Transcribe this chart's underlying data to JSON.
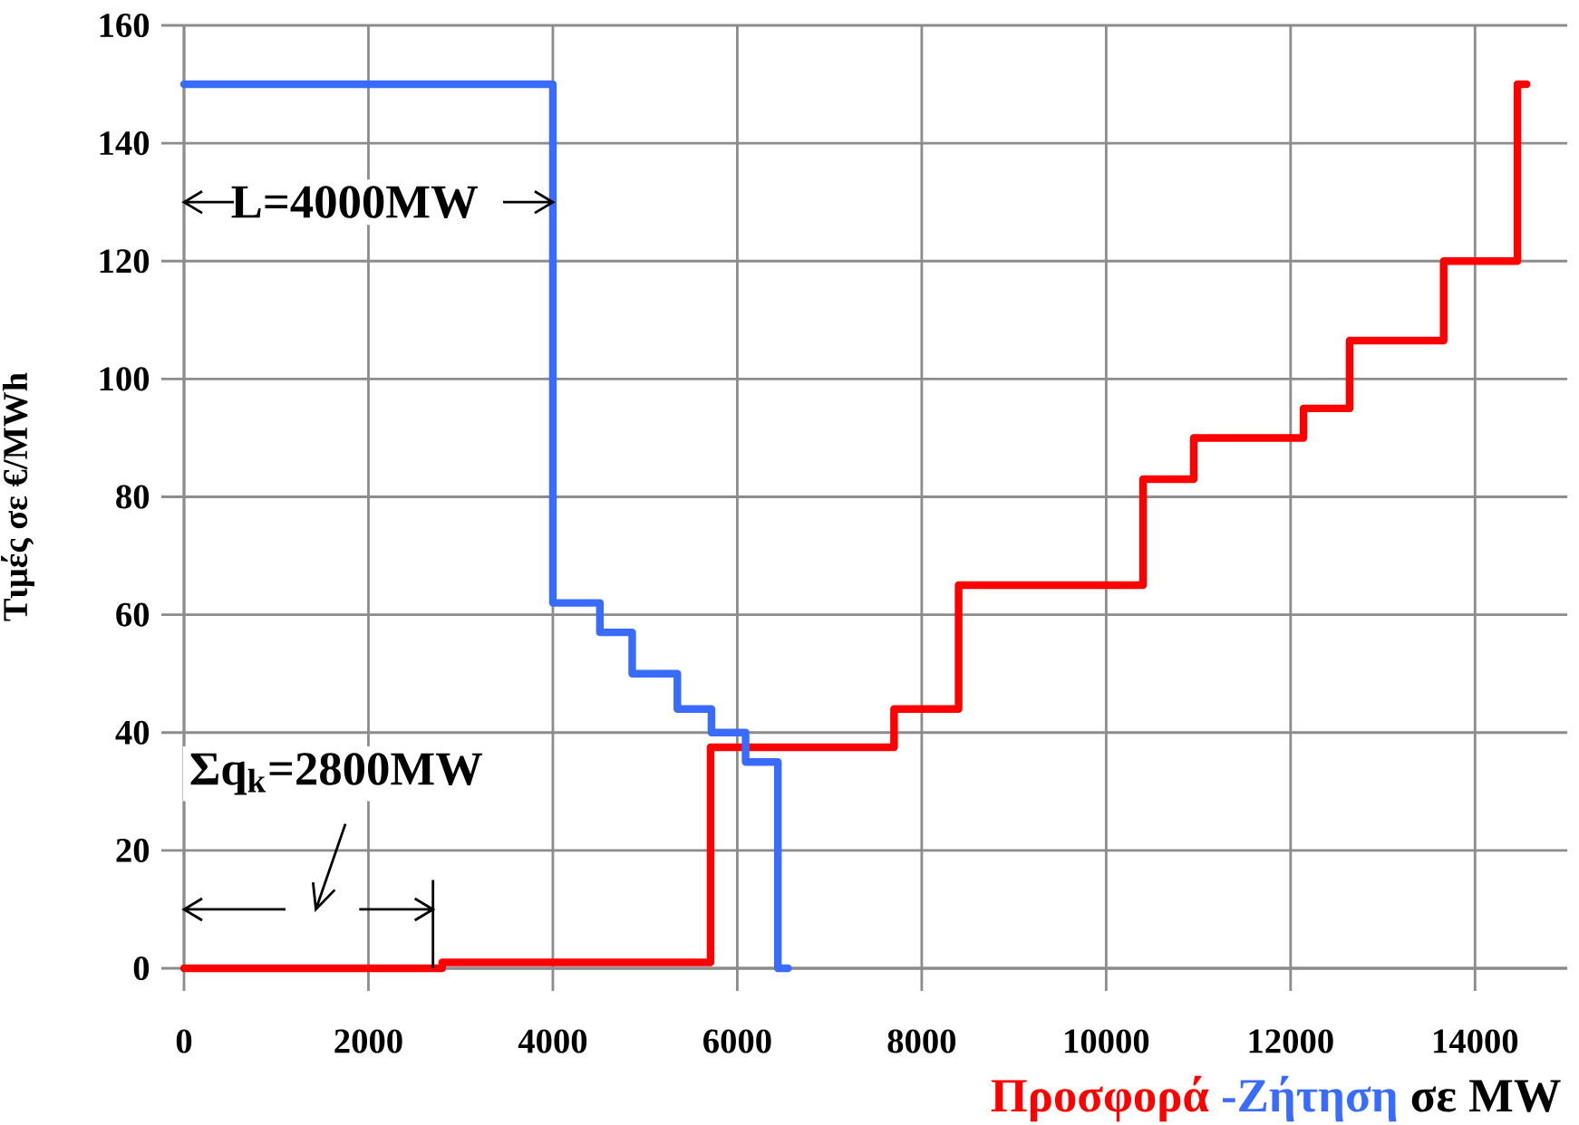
{
  "chart_data": {
    "type": "step",
    "xlabel": "σε MW",
    "ylabel": "Τιμές σε €/MWh",
    "xlim": [
      0,
      15000
    ],
    "xticks": [
      0,
      2000,
      4000,
      6000,
      8000,
      10000,
      12000,
      14000
    ],
    "ylim": [
      0,
      160
    ],
    "yticks": [
      0,
      20,
      40,
      60,
      80,
      100,
      120,
      140,
      160
    ],
    "grid": true,
    "series": [
      {
        "name": "Προσφορά",
        "color": "#ff0000",
        "x": [
          0,
          2800,
          5710,
          7700,
          8400,
          10400,
          10950,
          12140,
          12640,
          13660,
          14460,
          14560
        ],
        "values": [
          0,
          1,
          37.5,
          44,
          65,
          83,
          90,
          95,
          106.5,
          120,
          150,
          150
        ]
      },
      {
        "name": "-Ζήτηση",
        "color": "#3a6bff",
        "x": [
          0,
          4000,
          4510,
          4860,
          5350,
          5720,
          6090,
          6440,
          6550
        ],
        "values": [
          150,
          62,
          57,
          50,
          44,
          40,
          35,
          0,
          0
        ]
      }
    ],
    "annotations": [
      {
        "text": "L=4000MW",
        "x": 4000,
        "y": 130
      },
      "Σq$_{k}$=2800MW"
    ]
  }
}
